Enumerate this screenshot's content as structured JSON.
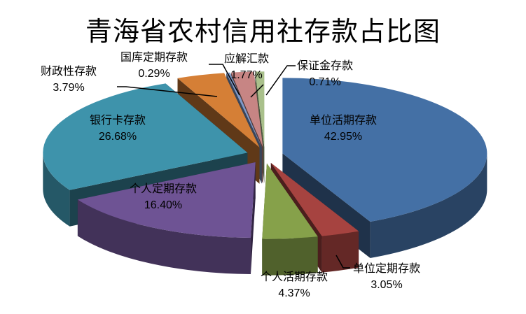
{
  "chart_data": {
    "type": "pie",
    "subtype": "3d-exploded",
    "title": "青海省农村信用社存款占比图",
    "categories": [
      "单位活期存款",
      "单位定期存款",
      "个人活期存款",
      "个人定期存款",
      "银行卡存款",
      "财政性存款",
      "国库定期存款",
      "应解汇款",
      "保证金存款"
    ],
    "values": [
      42.95,
      3.05,
      4.37,
      16.4,
      26.68,
      3.79,
      0.29,
      1.77,
      0.71
    ],
    "value_labels": [
      "42.95%",
      "3.05%",
      "4.37%",
      "16.40%",
      "26.68%",
      "3.79%",
      "0.29%",
      "1.77%",
      "0.71%"
    ],
    "colors": [
      "#4470A5",
      "#A64340",
      "#86A14A",
      "#6E5394",
      "#3E93AB",
      "#D57F36",
      "#7F9AC9",
      "#C78584",
      "#A9C08B"
    ],
    "legend": "none",
    "data_labels": "category and percentage"
  },
  "labels": [
    {
      "name": "单位活期存款",
      "pct": "42.95%"
    },
    {
      "name": "单位定期存款",
      "pct": "3.05%"
    },
    {
      "name": "个人活期存款",
      "pct": "4.37%"
    },
    {
      "name": "个人定期存款",
      "pct": "16.40%"
    },
    {
      "name": "银行卡存款",
      "pct": "26.68%"
    },
    {
      "name": "财政性存款",
      "pct": "3.79%"
    },
    {
      "name": "国库定期存款",
      "pct": "0.29%"
    },
    {
      "name": "应解汇款",
      "pct": "1.77%"
    },
    {
      "name": "保证金存款",
      "pct": "0.71%"
    }
  ]
}
